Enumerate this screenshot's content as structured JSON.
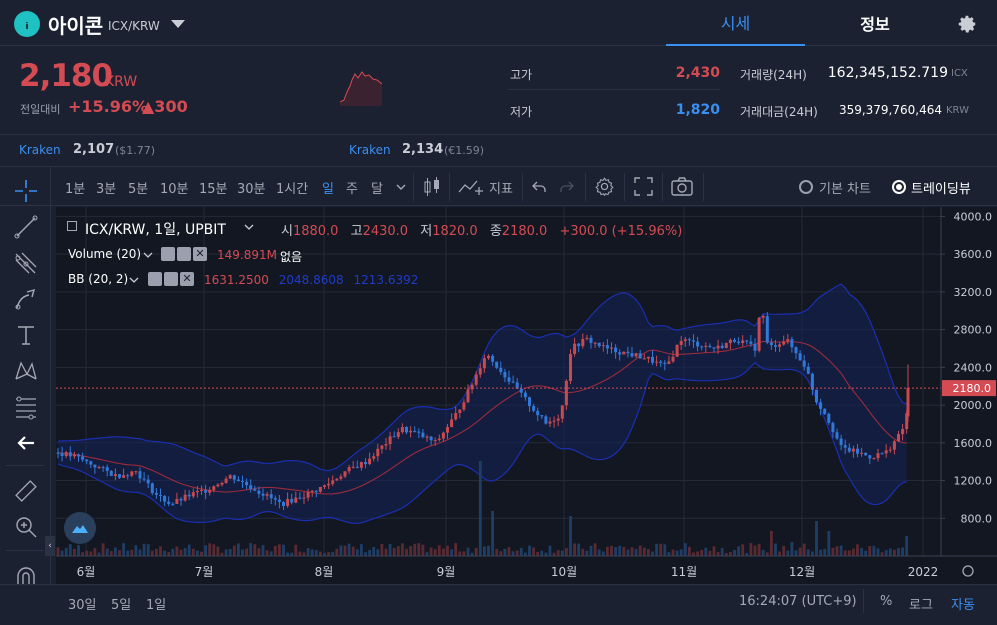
{
  "header": {
    "coin_name": "아이콘",
    "pair": "ICX/KRW",
    "tab_sise": "시세",
    "tab_info": "정보"
  },
  "price": {
    "current": "2,180",
    "unit": "KRW",
    "change_label": "전일대비",
    "change_pct": "+15.96%",
    "change_abs": "▲300"
  },
  "stats": {
    "high_label": "고가",
    "high": "2,430",
    "low_label": "저가",
    "low": "1,820",
    "volume_label": "거래량(24H)",
    "volume": "162,345,152.719",
    "volume_unit": "ICX",
    "amount_label": "거래대금(24H)",
    "amount": "359,379,760,464",
    "amount_unit": "KRW"
  },
  "exchanges": [
    {
      "name": "Kraken",
      "price": "2,107",
      "sub": "($1.77)"
    },
    {
      "name": "Kraken",
      "price": "2,134",
      "sub": "(€1.59)"
    }
  ],
  "toolbar": {
    "intervals": [
      "1분",
      "3분",
      "5분",
      "10분",
      "15분",
      "30분",
      "1시간",
      "일",
      "주",
      "달"
    ],
    "active_interval": "일",
    "indicators": "지표",
    "basic_chart": "기본 차트",
    "tradingview": "트레이딩뷰"
  },
  "legend": {
    "symbol": "ICX/KRW, 1일, UPBIT",
    "o_label": "시",
    "o": "1880.0",
    "h_label": "고",
    "h": "2430.0",
    "l_label": "저",
    "l": "1820.0",
    "c_label": "종",
    "c": "2180.0",
    "change": "+300.0 (+15.96%)",
    "volume_name": "Volume (20)",
    "volume_val": "149.891M",
    "volume_ma": "없음",
    "bb_name": "BB (20, 2)",
    "bb_mid": "1631.2500",
    "bb_up": "2048.8608",
    "bb_low": "1213.6392"
  },
  "chart_data": {
    "type": "candlestick",
    "price_axis": [
      "4000.0",
      "3600.0",
      "3200.0",
      "2800.0",
      "2400.0",
      "2000.0",
      "1600.0",
      "1200.0",
      "800.0"
    ],
    "last_price_label": "2180.0",
    "ylim": [
      400,
      4100
    ],
    "month_labels": [
      "6월",
      "7월",
      "8월",
      "9월",
      "10월",
      "11월",
      "12월",
      "2022"
    ],
    "colors": {
      "up": "#c84a4f",
      "down": "#3179d8",
      "bb": "#1a2fb0",
      "mid": "#9c2b3b"
    }
  },
  "bottom": {
    "ranges": [
      "30일",
      "5일",
      "1일"
    ],
    "time": "16:24:07 (UTC+9)",
    "pct": "%",
    "log": "로그",
    "auto": "자동"
  }
}
